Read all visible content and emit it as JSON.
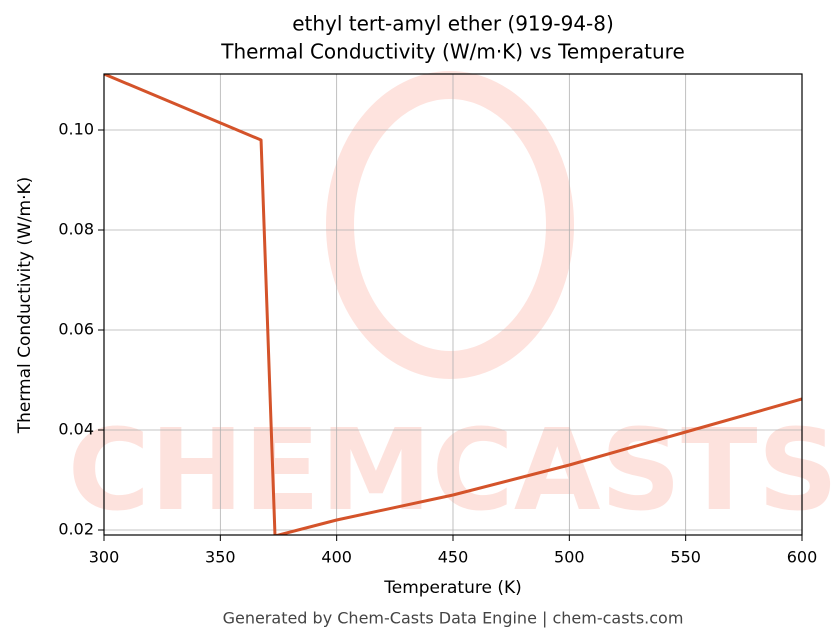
{
  "chart_data": {
    "type": "line",
    "title": "ethyl tert-amyl ether (919-94-8)",
    "subtitle": "Thermal Conductivity (W/m·K) vs Temperature",
    "x_label": "Temperature (K)",
    "y_label": "Thermal Conductivity (W/m·K)",
    "footer": "Generated by Chem-Casts Data Engine | chem-casts.com",
    "watermark": "CHEMCASTS",
    "x": [
      300,
      367.5,
      373.5,
      400,
      450,
      500,
      550,
      600
    ],
    "series": [
      {
        "name": "Thermal Conductivity",
        "color": "#d4532a",
        "values": [
          0.1112,
          0.098,
          0.0188,
          0.022,
          0.027,
          0.033,
          0.0396,
          0.0462
        ]
      }
    ],
    "xlim": [
      300,
      600
    ],
    "xticks": [
      300,
      350,
      400,
      450,
      500,
      550,
      600
    ],
    "ylim": [
      0.019,
      0.1112
    ],
    "yticks": [
      {
        "value": 0.02,
        "label": "0.02"
      },
      {
        "value": 0.04,
        "label": "0.04"
      },
      {
        "value": 0.06,
        "label": "0.06"
      },
      {
        "value": 0.08,
        "label": "0.08"
      },
      {
        "value": 0.1,
        "label": "0.10"
      }
    ],
    "grid": true
  }
}
